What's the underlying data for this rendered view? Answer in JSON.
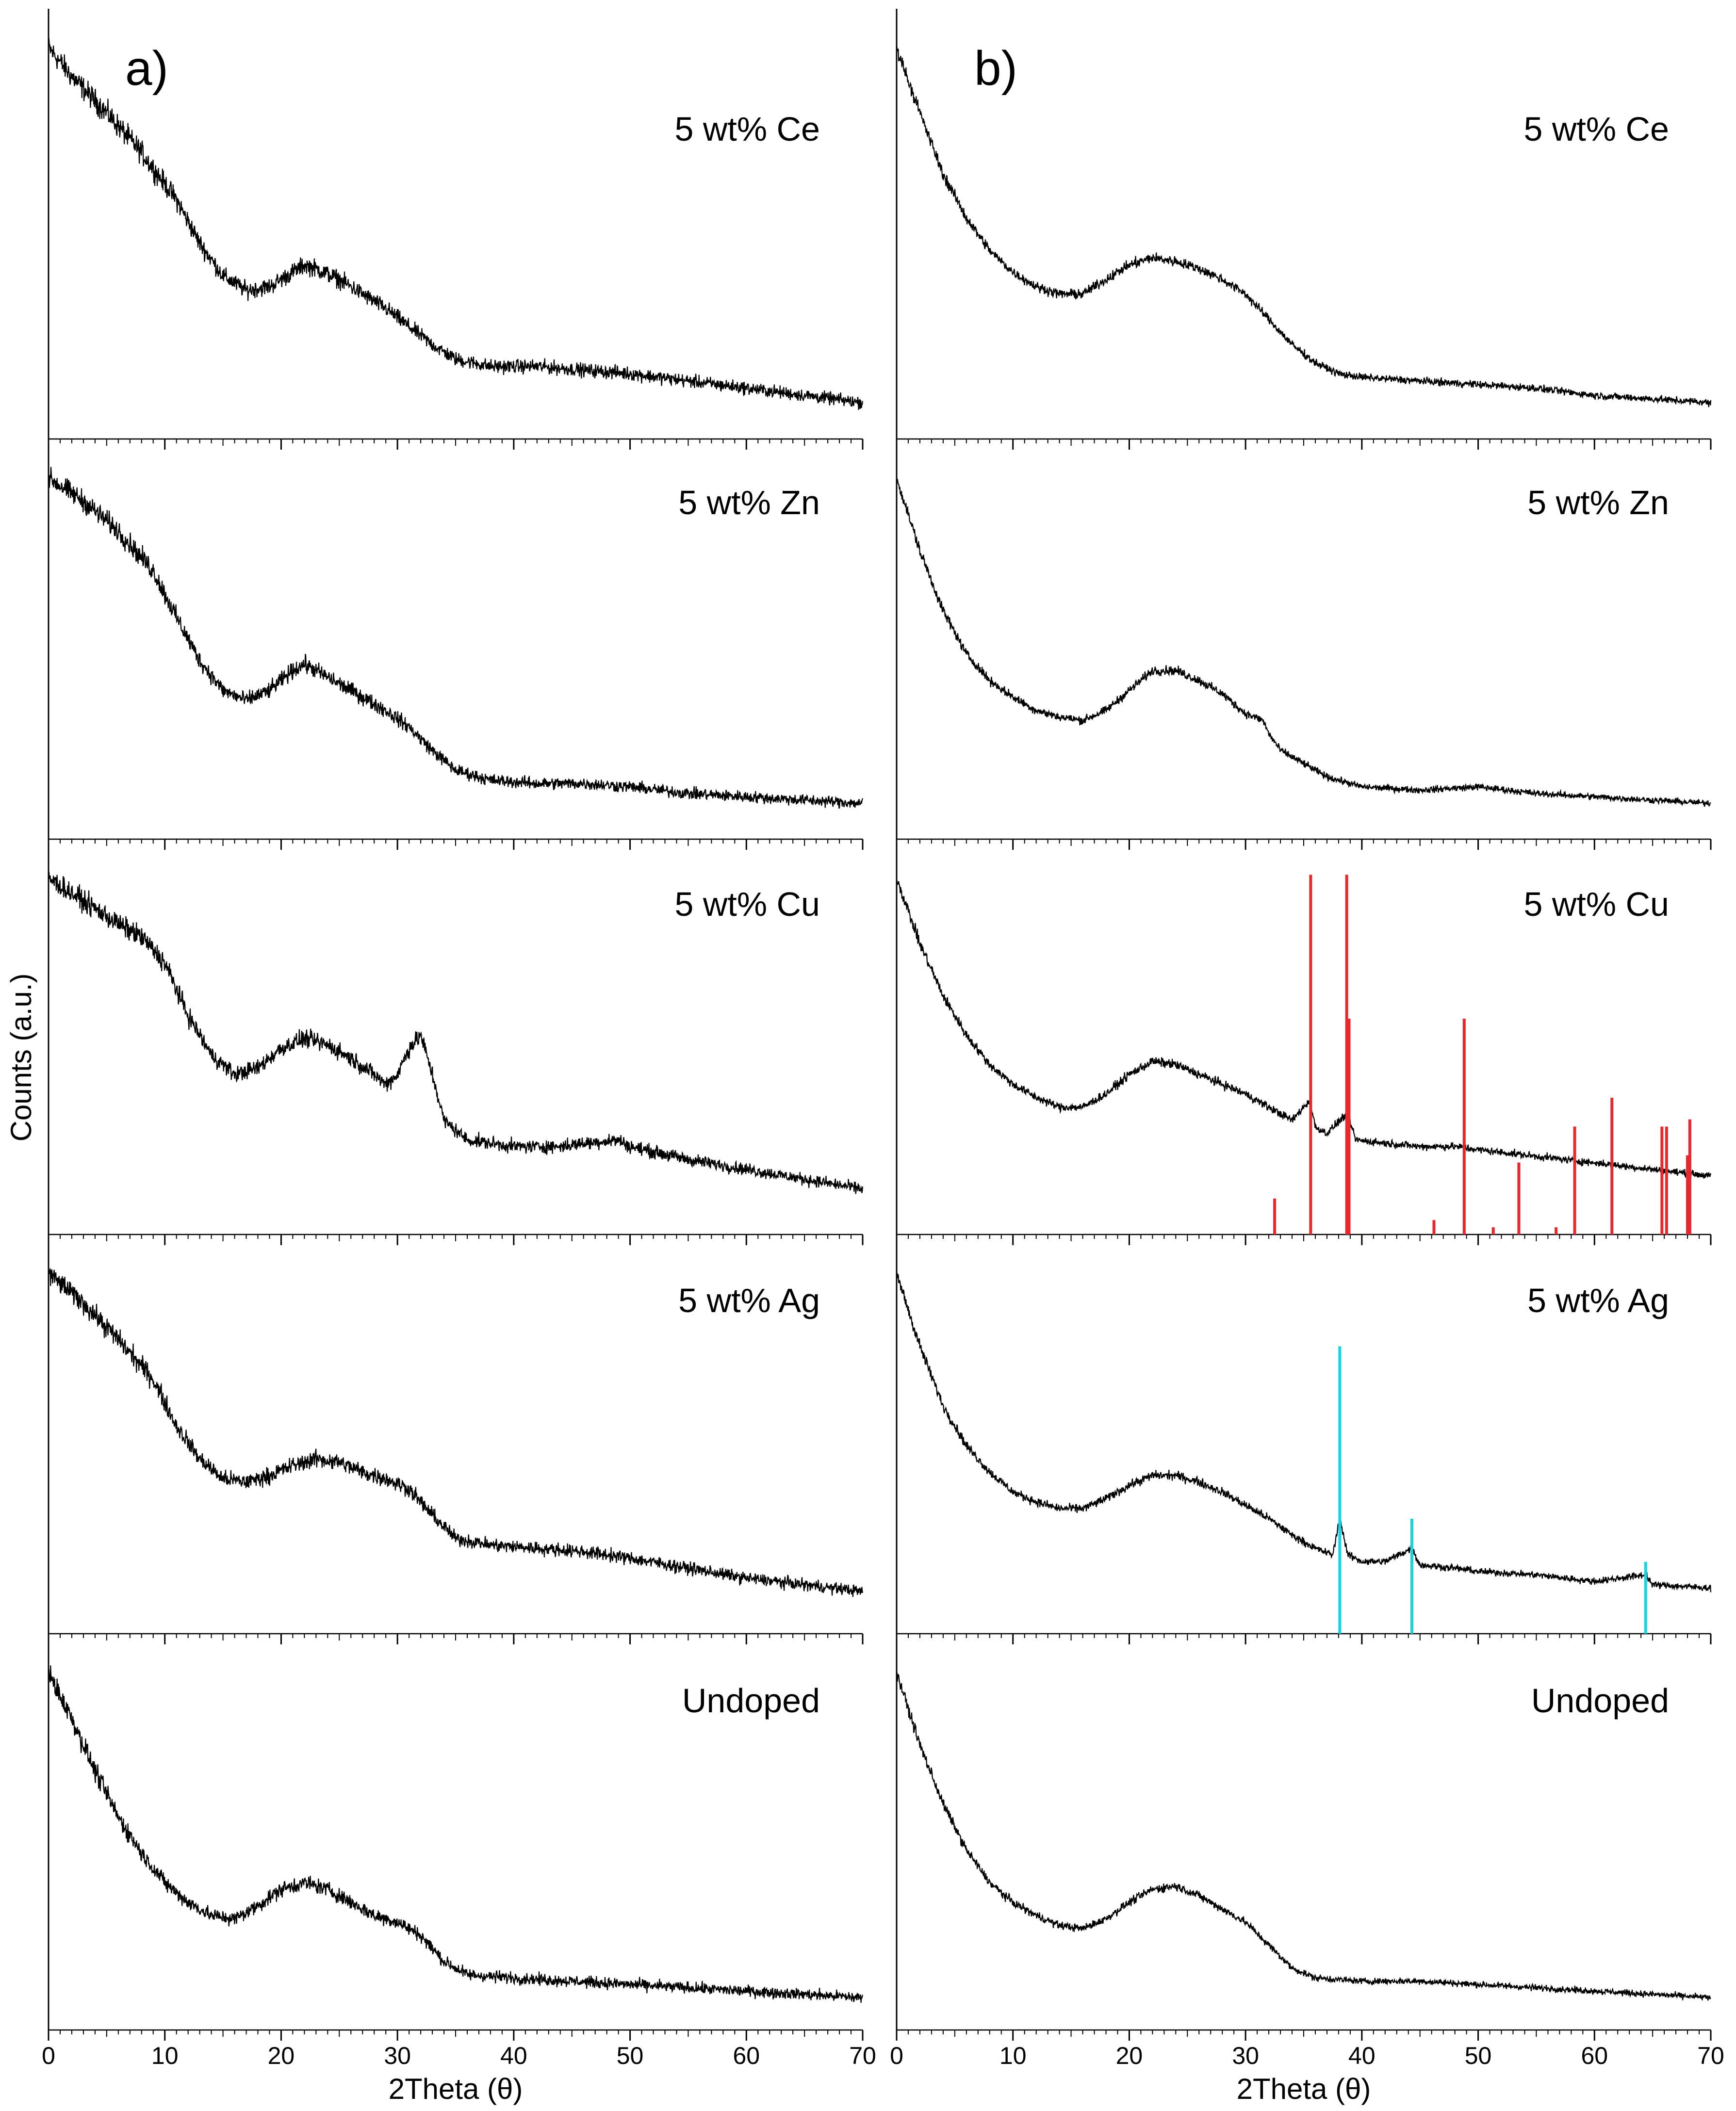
{
  "figure": {
    "ylabel": "Counts (a.u.)",
    "sample_order_top_to_bottom": [
      "5 wt% Ce",
      "5 wt% Zn",
      "5 wt% Cu",
      "5 wt% Ag",
      "Undoped"
    ]
  },
  "chart_data": [
    {
      "type": "line",
      "panel_label": "a)",
      "xlabel": "2Theta (θ)",
      "ylabel": "Counts (a.u.)",
      "xlim": [
        0,
        70
      ],
      "xticks": [
        "0",
        "10",
        "20",
        "30",
        "40",
        "50",
        "60",
        "70"
      ],
      "series": [
        {
          "name": "5 wt% Ce",
          "x": [
            0,
            2,
            5,
            8,
            11,
            13,
            15,
            17,
            19,
            21,
            22,
            23,
            25,
            27,
            29,
            31,
            33,
            35,
            38,
            42,
            46,
            50,
            55,
            60,
            65,
            70
          ],
          "y": [
            1.0,
            0.92,
            0.82,
            0.71,
            0.58,
            0.46,
            0.37,
            0.33,
            0.34,
            0.38,
            0.4,
            0.39,
            0.36,
            0.32,
            0.28,
            0.23,
            0.18,
            0.14,
            0.12,
            0.12,
            0.11,
            0.1,
            0.08,
            0.06,
            0.04,
            0.02
          ]
        },
        {
          "name": "5 wt% Zn",
          "x": [
            0,
            3,
            6,
            9,
            11,
            13,
            15,
            17,
            19,
            21,
            22,
            23,
            25,
            27,
            29,
            31,
            33,
            35,
            38,
            42,
            46,
            50,
            55,
            60,
            65,
            70
          ],
          "y": [
            1.0,
            0.93,
            0.84,
            0.72,
            0.58,
            0.45,
            0.36,
            0.33,
            0.36,
            0.42,
            0.44,
            0.42,
            0.38,
            0.34,
            0.3,
            0.25,
            0.18,
            0.12,
            0.09,
            0.08,
            0.08,
            0.07,
            0.05,
            0.04,
            0.03,
            0.02
          ]
        },
        {
          "name": "5 wt% Cu",
          "x": [
            0,
            3,
            6,
            8,
            10,
            12,
            14,
            16,
            18,
            20,
            22,
            24,
            26,
            28,
            29,
            30,
            31,
            32,
            33,
            34,
            36,
            40,
            44,
            46,
            49,
            50,
            55,
            60,
            65,
            70
          ],
          "y": [
            1.0,
            0.93,
            0.86,
            0.82,
            0.74,
            0.58,
            0.46,
            0.4,
            0.42,
            0.48,
            0.51,
            0.49,
            0.45,
            0.4,
            0.37,
            0.4,
            0.48,
            0.52,
            0.4,
            0.26,
            0.2,
            0.18,
            0.18,
            0.19,
            0.2,
            0.18,
            0.14,
            0.11,
            0.08,
            0.05
          ]
        },
        {
          "name": "5 wt% Ag",
          "x": [
            0,
            3,
            6,
            9,
            11,
            13,
            15,
            17,
            19,
            21,
            23,
            25,
            27,
            29,
            31,
            33,
            35,
            38,
            42,
            46,
            50,
            55,
            60,
            65,
            70
          ],
          "y": [
            1.0,
            0.91,
            0.8,
            0.68,
            0.54,
            0.44,
            0.38,
            0.37,
            0.39,
            0.42,
            0.44,
            0.43,
            0.4,
            0.38,
            0.35,
            0.27,
            0.2,
            0.18,
            0.17,
            0.16,
            0.14,
            0.11,
            0.08,
            0.06,
            0.04
          ]
        },
        {
          "name": "Undoped",
          "x": [
            0,
            2,
            4,
            6,
            8,
            10,
            12,
            14,
            16,
            18,
            20,
            22,
            24,
            26,
            28,
            30,
            32,
            34,
            36,
            40,
            45,
            50,
            55,
            60,
            65,
            70
          ],
          "y": [
            1.0,
            0.86,
            0.7,
            0.56,
            0.45,
            0.36,
            0.3,
            0.26,
            0.25,
            0.29,
            0.34,
            0.36,
            0.34,
            0.3,
            0.26,
            0.24,
            0.2,
            0.12,
            0.08,
            0.07,
            0.06,
            0.05,
            0.04,
            0.03,
            0.02,
            0.01
          ]
        }
      ]
    },
    {
      "type": "line",
      "panel_label": "b)",
      "xlabel": "2Theta (θ)",
      "xlim": [
        0,
        70
      ],
      "xticks": [
        "0",
        "10",
        "20",
        "30",
        "40",
        "50",
        "60",
        "70"
      ],
      "series": [
        {
          "name": "5 wt% Ce",
          "x": [
            0,
            2,
            4,
            6,
            8,
            10,
            12,
            14,
            16,
            18,
            20,
            22,
            24,
            26,
            28,
            30,
            32,
            34,
            36,
            38,
            40,
            45,
            50,
            55,
            60,
            65,
            70
          ],
          "y": [
            1.0,
            0.82,
            0.65,
            0.53,
            0.44,
            0.38,
            0.34,
            0.32,
            0.32,
            0.36,
            0.4,
            0.42,
            0.41,
            0.39,
            0.36,
            0.32,
            0.25,
            0.18,
            0.13,
            0.1,
            0.09,
            0.08,
            0.07,
            0.06,
            0.04,
            0.03,
            0.02
          ]
        },
        {
          "name": "5 wt% Zn",
          "x": [
            0,
            2,
            4,
            6,
            8,
            10,
            12,
            14,
            16,
            18,
            20,
            22,
            24,
            26,
            28,
            30,
            31.5,
            32,
            33,
            35,
            37,
            40,
            45,
            50,
            55,
            60,
            65,
            70
          ],
          "y": [
            1.0,
            0.78,
            0.6,
            0.47,
            0.39,
            0.34,
            0.3,
            0.28,
            0.27,
            0.3,
            0.36,
            0.42,
            0.42,
            0.39,
            0.35,
            0.29,
            0.27,
            0.23,
            0.18,
            0.14,
            0.1,
            0.07,
            0.06,
            0.07,
            0.05,
            0.04,
            0.03,
            0.02
          ]
        },
        {
          "name": "5 wt% Cu",
          "x": [
            0,
            2,
            4,
            6,
            8,
            10,
            12,
            14,
            16,
            18,
            20,
            22,
            24,
            26,
            28,
            30,
            32,
            34,
            35.5,
            36,
            37,
            38.7,
            39.5,
            42,
            45,
            48,
            50,
            55,
            60,
            65,
            70
          ],
          "y": [
            1.0,
            0.8,
            0.64,
            0.52,
            0.43,
            0.37,
            0.33,
            0.3,
            0.3,
            0.34,
            0.4,
            0.44,
            0.43,
            0.4,
            0.37,
            0.34,
            0.3,
            0.26,
            0.32,
            0.24,
            0.22,
            0.28,
            0.2,
            0.19,
            0.18,
            0.18,
            0.17,
            0.15,
            0.13,
            0.11,
            0.09
          ]
        },
        {
          "name": "5 wt% Ag",
          "x": [
            0,
            2,
            4,
            6,
            8,
            10,
            12,
            14,
            16,
            18,
            20,
            22,
            24,
            26,
            28,
            30,
            32,
            34,
            36,
            37.5,
            38.1,
            38.8,
            40,
            42,
            44.3,
            45,
            48,
            50,
            55,
            60,
            64.4,
            65,
            70
          ],
          "y": [
            1.0,
            0.78,
            0.6,
            0.48,
            0.4,
            0.34,
            0.31,
            0.29,
            0.29,
            0.32,
            0.36,
            0.39,
            0.39,
            0.37,
            0.34,
            0.3,
            0.26,
            0.21,
            0.17,
            0.15,
            0.26,
            0.15,
            0.13,
            0.13,
            0.17,
            0.12,
            0.11,
            0.1,
            0.09,
            0.07,
            0.09,
            0.06,
            0.05
          ]
        },
        {
          "name": "Undoped",
          "x": [
            0,
            2,
            4,
            6,
            8,
            10,
            12,
            14,
            16,
            18,
            20,
            22,
            24,
            26,
            28,
            30,
            32,
            34,
            36,
            40,
            45,
            50,
            55,
            60,
            65,
            70
          ],
          "y": [
            1.0,
            0.78,
            0.6,
            0.46,
            0.36,
            0.3,
            0.26,
            0.23,
            0.22,
            0.25,
            0.3,
            0.34,
            0.35,
            0.32,
            0.28,
            0.24,
            0.17,
            0.1,
            0.07,
            0.06,
            0.06,
            0.05,
            0.04,
            0.03,
            0.02,
            0.01
          ]
        }
      ],
      "reference_markers": [
        {
          "name": "Cu reference pattern",
          "color": "#e8282c",
          "positions": [
            32.5,
            35.6,
            38.7,
            38.9,
            46.2,
            48.8,
            51.3,
            53.5,
            56.7,
            58.3,
            61.5,
            65.8,
            66.2,
            68.0,
            68.2
          ],
          "intensities": [
            0.1,
            1.0,
            1.0,
            0.6,
            0.04,
            0.6,
            0.02,
            0.2,
            0.02,
            0.3,
            0.38,
            0.3,
            0.3,
            0.22,
            0.32
          ]
        },
        {
          "name": "Ag reference pattern",
          "color": "#17d3e3",
          "positions": [
            38.1,
            44.3,
            64.4
          ],
          "intensities": [
            1.0,
            0.4,
            0.25
          ]
        }
      ]
    }
  ]
}
